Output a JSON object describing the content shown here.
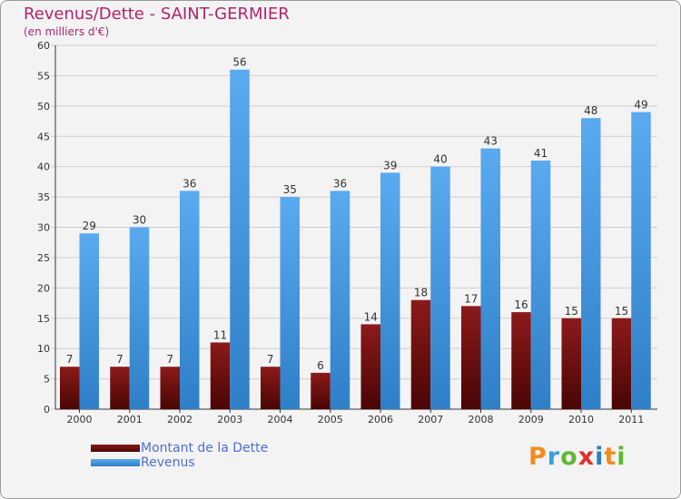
{
  "chart_data": {
    "type": "bar",
    "title": "Revenus/Dette - SAINT-GERMIER",
    "subtitle": "(en milliers d'€)",
    "xlabel": "",
    "ylabel": "",
    "categories": [
      "2000",
      "2001",
      "2002",
      "2003",
      "2004",
      "2005",
      "2006",
      "2007",
      "2008",
      "2009",
      "2010",
      "2011"
    ],
    "series": [
      {
        "name": "Montant de la Dette",
        "color": "#7a1010",
        "values": [
          7,
          7,
          7,
          11,
          7,
          6,
          14,
          18,
          17,
          16,
          15,
          15
        ]
      },
      {
        "name": "Revenus",
        "color": "#4a9fe0",
        "values": [
          29,
          30,
          36,
          56,
          35,
          36,
          39,
          40,
          43,
          41,
          48,
          49
        ]
      }
    ],
    "ylim": [
      0,
      60
    ],
    "yticks": [
      0,
      5,
      10,
      15,
      20,
      25,
      30,
      35,
      40,
      45,
      50,
      55,
      60
    ],
    "grid": true,
    "legend": "bottom-left"
  },
  "logo": {
    "text": "Proxiti",
    "colors": [
      "#f28c1e",
      "#3aa0d8",
      "#5fb830",
      "#e0312b",
      "#2a7fc4",
      "#f28c1e",
      "#5fb830"
    ]
  }
}
